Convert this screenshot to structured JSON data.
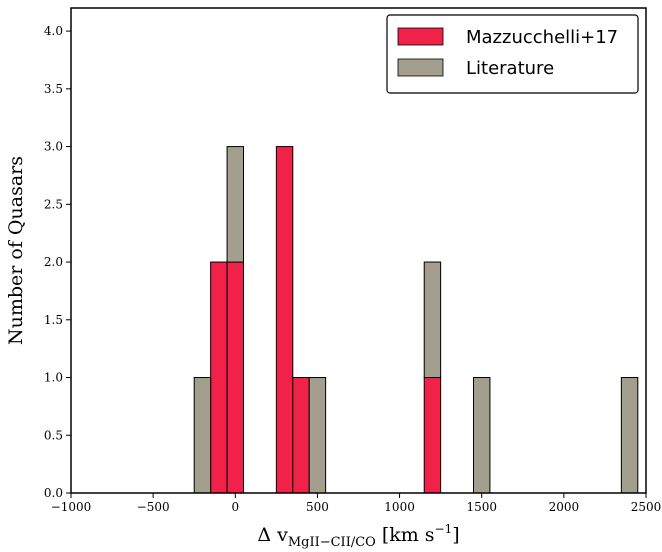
{
  "chart_data": {
    "type": "bar",
    "subtype": "stacked-histogram",
    "title": "",
    "xlabel": "Δ v",
    "xlabel_subscript": "MgII−CII/CO",
    "xlabel_units": "[km s",
    "xlabel_units_sup": "−1",
    "xlabel_units_end": "]",
    "ylabel": "Number of Quasars",
    "xlim": [
      -1000,
      2500
    ],
    "ylim": [
      0,
      4.2
    ],
    "xticks": [
      -1000,
      -500,
      0,
      500,
      1000,
      1500,
      2000,
      2500
    ],
    "xtick_labels": [
      "−1000",
      "−500",
      "0",
      "500",
      "1000",
      "1500",
      "2000",
      "2500"
    ],
    "yticks": [
      0,
      0.5,
      1,
      1.5,
      2,
      2.5,
      3,
      3.5,
      4
    ],
    "ytick_labels": [
      "0.0",
      "0.5",
      "1.0",
      "1.5",
      "2.0",
      "2.5",
      "3.0",
      "3.5",
      "4.0"
    ],
    "grid": false,
    "legend_position": "top-right",
    "series": [
      {
        "name": "Mazzucchelli+17",
        "color": "#f0224a",
        "bins": [
          {
            "x0": -250,
            "x1": -150,
            "count": 0
          },
          {
            "x0": -150,
            "x1": -50,
            "count": 2
          },
          {
            "x0": -50,
            "x1": 50,
            "count": 2
          },
          {
            "x0": 250,
            "x1": 350,
            "count": 3
          },
          {
            "x0": 350,
            "x1": 450,
            "count": 1
          },
          {
            "x0": 450,
            "x1": 550,
            "count": 0
          },
          {
            "x0": 1150,
            "x1": 1250,
            "count": 1
          },
          {
            "x0": 1450,
            "x1": 1550,
            "count": 0
          },
          {
            "x0": 2350,
            "x1": 2450,
            "count": 0
          }
        ]
      },
      {
        "name": "Literature",
        "color": "#a39f8e",
        "bins": [
          {
            "x0": -250,
            "x1": -150,
            "count": 1
          },
          {
            "x0": -150,
            "x1": -50,
            "count": 0
          },
          {
            "x0": -50,
            "x1": 50,
            "count": 1
          },
          {
            "x0": 250,
            "x1": 350,
            "count": 0
          },
          {
            "x0": 350,
            "x1": 450,
            "count": 0
          },
          {
            "x0": 450,
            "x1": 550,
            "count": 1
          },
          {
            "x0": 1150,
            "x1": 1250,
            "count": 1
          },
          {
            "x0": 1450,
            "x1": 1550,
            "count": 1
          },
          {
            "x0": 2350,
            "x1": 2450,
            "count": 1
          }
        ]
      }
    ]
  }
}
